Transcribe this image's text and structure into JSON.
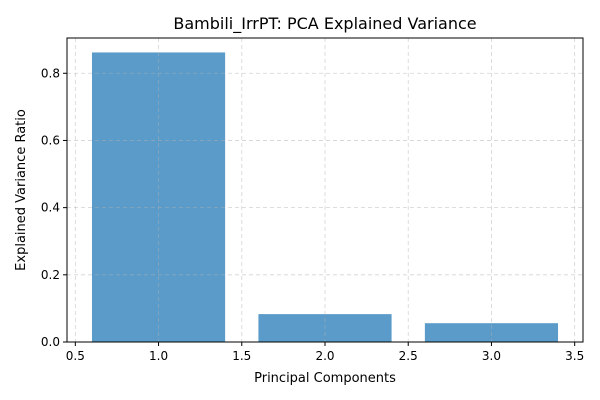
{
  "chart_data": {
    "type": "bar",
    "title": "Bambili_IrrPT: PCA Explained Variance",
    "xlabel": "Principal Components",
    "ylabel": "Explained Variance Ratio",
    "x": [
      1,
      2,
      3
    ],
    "values": [
      0.862,
      0.083,
      0.056
    ],
    "bar_width": 0.8,
    "xlim": [
      0.45,
      3.55
    ],
    "ylim": [
      0,
      0.905
    ],
    "xticks": [
      0.5,
      1.0,
      1.5,
      2.0,
      2.5,
      3.0,
      3.5
    ],
    "xtick_labels": [
      "0.5",
      "1.0",
      "1.5",
      "2.0",
      "2.5",
      "3.0",
      "3.5"
    ],
    "yticks": [
      0,
      0.2,
      0.4,
      0.6,
      0.8
    ],
    "ytick_labels": [
      "0.0",
      "0.2",
      "0.4",
      "0.6",
      "0.8"
    ],
    "grid": true,
    "bar_color": "#5b9bc9"
  }
}
